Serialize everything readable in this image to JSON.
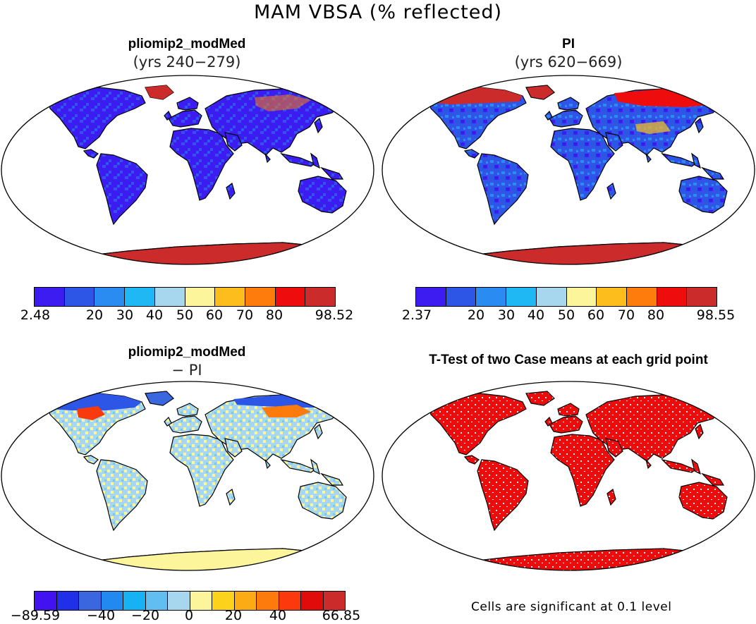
{
  "figure": {
    "title": "MAM VBSA (% reflected)"
  },
  "panels": [
    {
      "title": "pliomip2_modMed",
      "subtitle": "(yrs 240−279)",
      "style": "field_plio"
    },
    {
      "title": "PI",
      "subtitle": "(yrs 620−669)",
      "style": "field_pi"
    },
    {
      "title": "pliomip2_modMed",
      "subtitle": "− PI",
      "style": "diff"
    },
    {
      "title": "T-Test of two Case means at each grid point",
      "subtitle": "",
      "style": "ttest"
    }
  ],
  "colorbars": [
    {
      "colors": [
        "#3c1cf0",
        "#2d55e6",
        "#2a8bf0",
        "#1fb8f5",
        "#a6d7ee",
        "#fdf59c",
        "#fdbd1d",
        "#fd7c0c",
        "#ef0c0c",
        "#cc2b2b"
      ],
      "ticks": [
        {
          "v": "2.48"
        },
        {
          "v": "20"
        },
        {
          "v": "30"
        },
        {
          "v": "40"
        },
        {
          "v": "50"
        },
        {
          "v": "60"
        },
        {
          "v": "70"
        },
        {
          "v": "80"
        },
        {
          "v": "98.52"
        }
      ]
    },
    {
      "colors": [
        "#3c1cf0",
        "#2d55e6",
        "#2a8bf0",
        "#1fb8f5",
        "#a6d7ee",
        "#fdf59c",
        "#fdbd1d",
        "#fd7c0c",
        "#ef0c0c",
        "#cc2b2b"
      ],
      "ticks": [
        {
          "v": "2.37"
        },
        {
          "v": "20"
        },
        {
          "v": "30"
        },
        {
          "v": "40"
        },
        {
          "v": "50"
        },
        {
          "v": "60"
        },
        {
          "v": "70"
        },
        {
          "v": "80"
        },
        {
          "v": "98.55"
        }
      ]
    },
    {
      "colors": [
        "#4212f0",
        "#1f30e8",
        "#3a66e0",
        "#2289f0",
        "#16b2f4",
        "#62bef0",
        "#a6d7ee",
        "#fdf59c",
        "#fdd21b",
        "#fdab14",
        "#fd7b0c",
        "#fa3a0c",
        "#e10b0b",
        "#cc2b2b"
      ],
      "ticks": [
        {
          "v": "−89.59"
        },
        {
          "v": "−40"
        },
        {
          "v": "−20"
        },
        {
          "v": "0"
        },
        {
          "v": "20"
        },
        {
          "v": "40"
        },
        {
          "v": "66.85"
        }
      ]
    }
  ],
  "significance_note": "Cells are significant at 0.1 level"
}
